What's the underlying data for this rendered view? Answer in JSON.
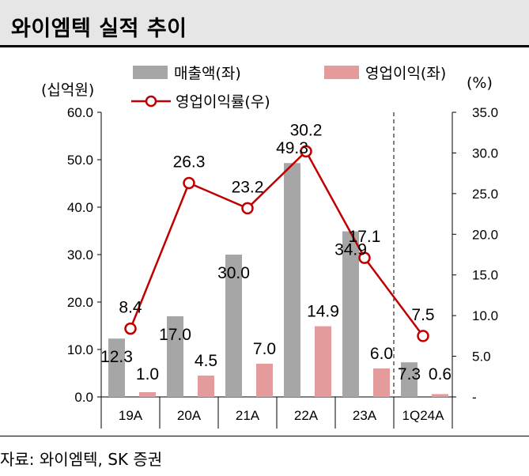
{
  "header": {
    "title": "와이엠텍 실적 추이"
  },
  "source": "자료: 와이엠텍, SK 증권",
  "chart_data": {
    "type": "bar+line",
    "title": "와이엠텍 실적 추이",
    "categories": [
      "19A",
      "20A",
      "21A",
      "22A",
      "23A",
      "1Q24A"
    ],
    "left_axis_label": "(십억원)",
    "right_axis_label": "(%)",
    "left_ylim": [
      0,
      60
    ],
    "right_ylim": [
      0,
      35
    ],
    "left_ticks": [
      "0.0",
      "10.0",
      "20.0",
      "30.0",
      "40.0",
      "50.0",
      "60.0"
    ],
    "right_ticks": [
      "-",
      "5.0",
      "10.0",
      "15.0",
      "20.0",
      "25.0",
      "30.0",
      "35.0"
    ],
    "series": [
      {
        "name": "매출액(좌)",
        "type": "bar",
        "axis": "left",
        "color": "#a6a6a6",
        "values": [
          12.3,
          17.0,
          30.0,
          49.3,
          34.9,
          7.3
        ],
        "labels": [
          "12.3",
          "17.0",
          "30.0",
          "49.3",
          "34.9",
          "7.3"
        ]
      },
      {
        "name": "영업이익(좌)",
        "type": "bar",
        "axis": "left",
        "color": "#e39b9b",
        "values": [
          1.0,
          4.5,
          7.0,
          14.9,
          6.0,
          0.6
        ],
        "labels": [
          "1.0",
          "4.5",
          "7.0",
          "14.9",
          "6.0",
          "0.6"
        ]
      },
      {
        "name": "영업이익률(우)",
        "type": "line",
        "axis": "right",
        "color": "#c00000",
        "values": [
          8.4,
          26.3,
          23.2,
          30.2,
          17.1,
          7.5
        ],
        "labels": [
          "8.4",
          "26.3",
          "23.2",
          "30.2",
          "17.1",
          "7.5"
        ]
      }
    ],
    "divider_before_category": "1Q24A"
  }
}
